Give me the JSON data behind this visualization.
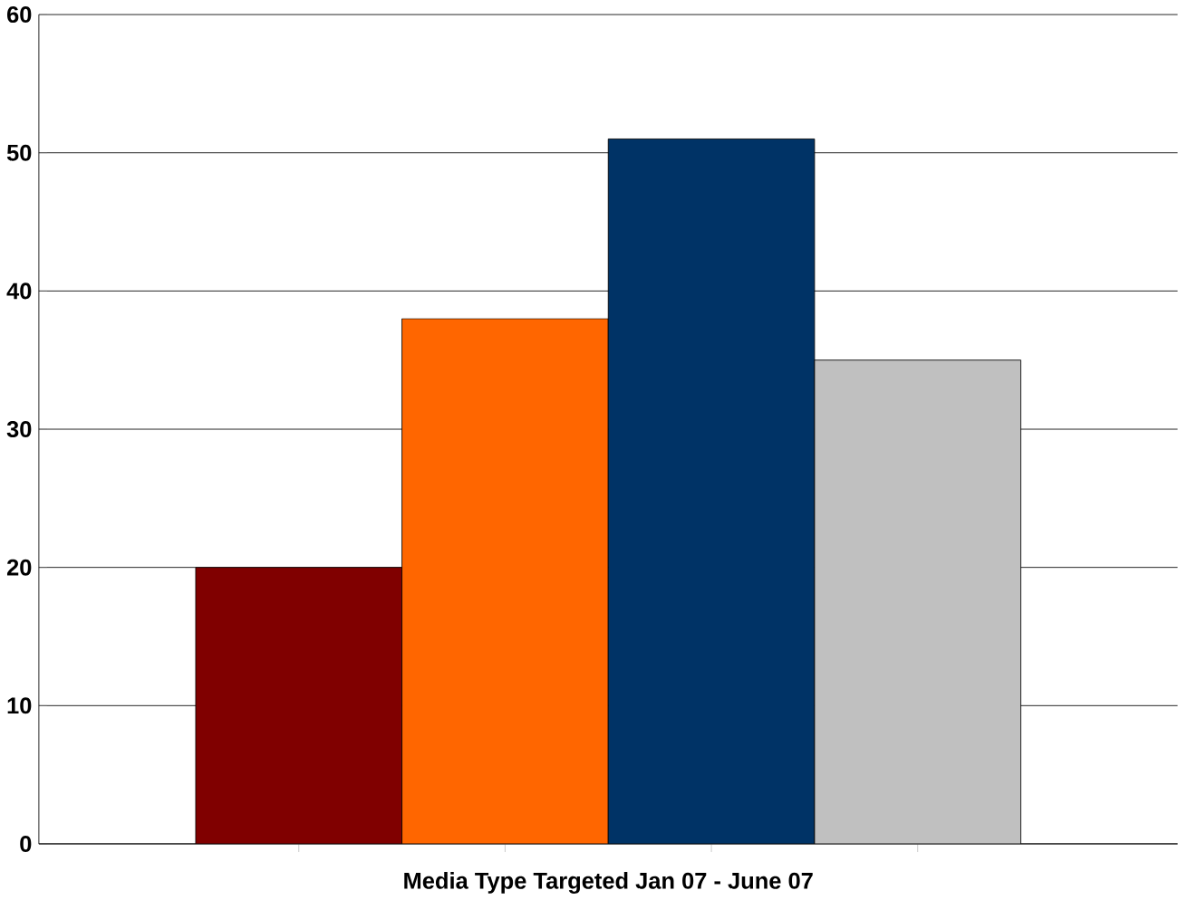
{
  "chart_data": {
    "type": "bar",
    "xlabel": "Media Type Targeted Jan 07 - June 07",
    "categories": [
      null,
      null,
      null,
      null
    ],
    "values": [
      20,
      38,
      51,
      35
    ],
    "colors": [
      "#800000",
      "#ff6600",
      "#003366",
      "#c0c0c0"
    ],
    "ylim": [
      0,
      60
    ],
    "yticks": [
      0,
      10,
      20,
      30,
      40,
      50,
      60
    ],
    "grid": "y"
  }
}
